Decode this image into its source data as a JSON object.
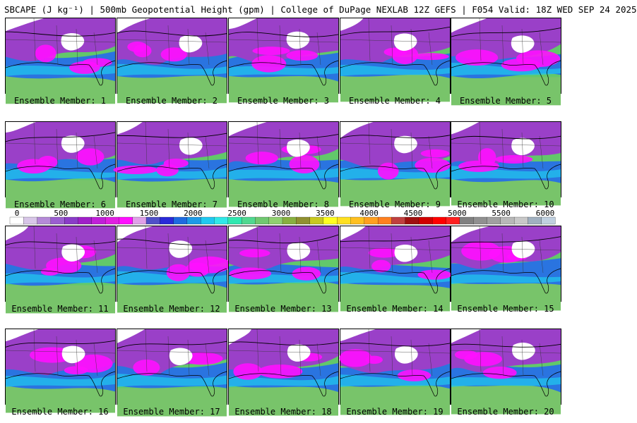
{
  "title": "SBCAPE (J kg⁻¹) | 500mb Geopotential Height (gpm) | College of DuPage NEXLAB 12Z GEFS | F054 Valid: 18Z WED SEP 24 2025",
  "colorbar": {
    "ticks": [
      "0",
      "500",
      "1000",
      "1500",
      "2000",
      "2500",
      "3000",
      "3500",
      "4000",
      "4500",
      "5000",
      "5500",
      "6000"
    ],
    "range": [
      0,
      6000
    ],
    "colors": [
      "#ffffff",
      "#d8c6e8",
      "#b58ad8",
      "#9a5ed0",
      "#8a3cc8",
      "#a020c8",
      "#c020d8",
      "#e020e0",
      "#ff10ff",
      "#e0a0e8",
      "#5050c8",
      "#2a2ad8",
      "#1e6ae0",
      "#1e9ae8",
      "#20c8f0",
      "#30e8e8",
      "#30e8b0",
      "#50d890",
      "#70c870",
      "#90d070",
      "#88b040",
      "#909030",
      "#c8c820",
      "#ffff20",
      "#ffe020",
      "#ffc020",
      "#ffa020",
      "#ff8020",
      "#c04040",
      "#a01010",
      "#d00000",
      "#ff0000",
      "#ff2020",
      "#808080",
      "#909090",
      "#a0a0a0",
      "#b8b8b8",
      "#c8c8c8",
      "#a0b0c0",
      "#c0d0e0"
    ]
  },
  "members": [
    {
      "label": "Ensemble Member: 1"
    },
    {
      "label": "Ensemble Member: 2"
    },
    {
      "label": "Ensemble Member: 3"
    },
    {
      "label": "Ensemble Member: 4"
    },
    {
      "label": "Ensemble Member: 5"
    },
    {
      "label": "Ensemble Member: 6"
    },
    {
      "label": "Ensemble Member: 7"
    },
    {
      "label": "Ensemble Member: 8"
    },
    {
      "label": "Ensemble Member: 9"
    },
    {
      "label": "Ensemble Member: 10"
    },
    {
      "label": "Ensemble Member: 11"
    },
    {
      "label": "Ensemble Member: 12"
    },
    {
      "label": "Ensemble Member: 13"
    },
    {
      "label": "Ensemble Member: 14"
    },
    {
      "label": "Ensemble Member: 15"
    },
    {
      "label": "Ensemble Member: 16"
    },
    {
      "label": "Ensemble Member: 17"
    },
    {
      "label": "Ensemble Member: 18"
    },
    {
      "label": "Ensemble Member: 19"
    },
    {
      "label": "Ensemble Member: 20"
    }
  ]
}
